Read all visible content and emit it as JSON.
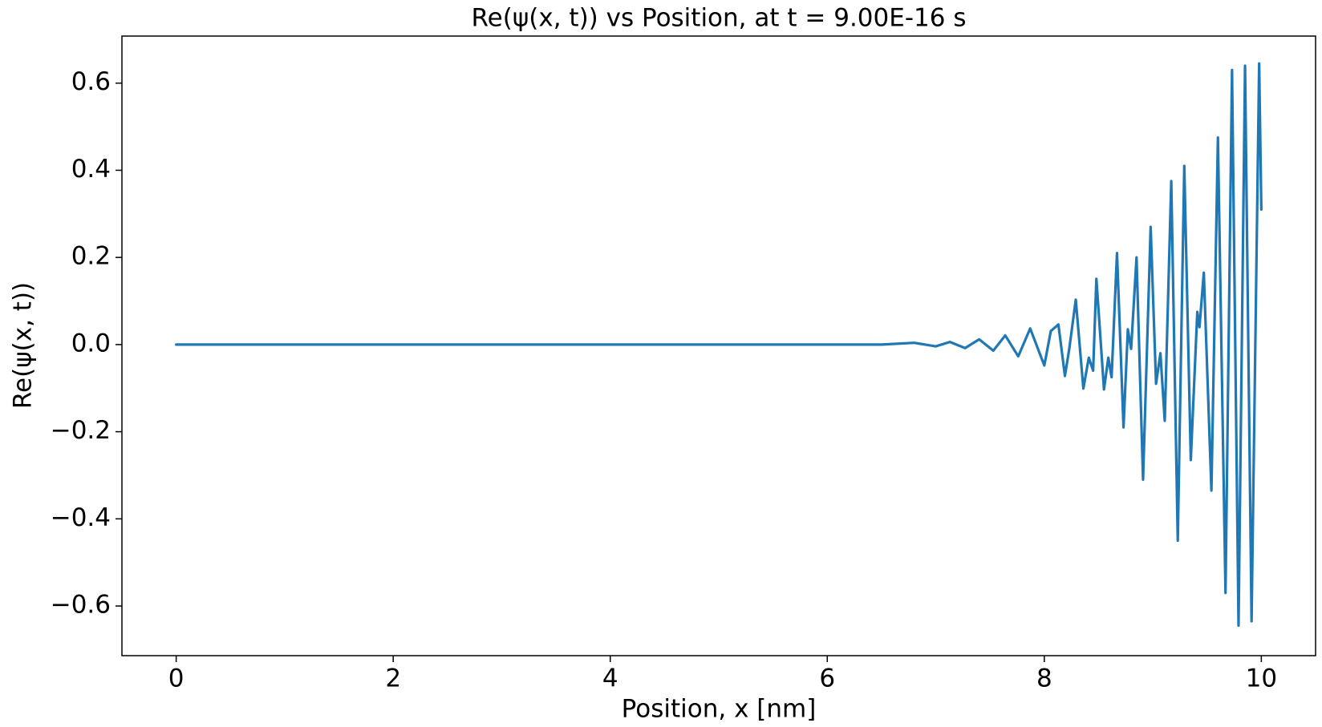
{
  "chart_data": {
    "type": "line",
    "title": "Re(ψ(x, t)) vs Position, at t = 9.00E-16 s",
    "x_label": "Position, x [nm]",
    "y_label": "Re(ψ(x, t))",
    "xlim": [
      -0.5,
      10.5
    ],
    "ylim": [
      -0.714,
      0.708
    ],
    "xticks": [
      0,
      2,
      4,
      6,
      8,
      10
    ],
    "yticks": [
      {
        "value": -0.6,
        "label": "−0.6"
      },
      {
        "value": -0.4,
        "label": "−0.4"
      },
      {
        "value": -0.2,
        "label": "−0.2"
      },
      {
        "value": 0,
        "label": "0.0"
      },
      0.2,
      0.4,
      0.6
    ],
    "grid": false,
    "series": [
      {
        "name": "Re(ψ(x, t))",
        "color": "#1f77b4",
        "x": [
          0,
          6.5,
          6.8,
          7.0,
          7.13,
          7.27,
          7.4,
          7.53,
          7.64,
          7.76,
          7.87,
          8.0,
          8.06,
          8.13,
          8.19,
          8.23,
          8.29,
          8.36,
          8.41,
          8.45,
          8.48,
          8.55,
          8.59,
          8.62,
          8.67,
          8.73,
          8.77,
          8.8,
          8.85,
          8.91,
          8.98,
          9.03,
          9.07,
          9.11,
          9.17,
          9.23,
          9.29,
          9.35,
          9.41,
          9.43,
          9.47,
          9.54,
          9.6,
          9.67,
          9.73,
          9.79,
          9.85,
          9.91,
          9.98,
          10.0
        ],
        "values": [
          0,
          0,
          0.004,
          -0.004,
          0.006,
          -0.008,
          0.012,
          -0.014,
          0.021,
          -0.027,
          0.037,
          -0.048,
          0.031,
          0.046,
          -0.072,
          -0.01,
          0.103,
          -0.101,
          -0.03,
          -0.06,
          0.151,
          -0.103,
          -0.03,
          -0.075,
          0.21,
          -0.19,
          0.035,
          -0.01,
          0.2,
          -0.31,
          0.27,
          -0.09,
          -0.02,
          -0.175,
          0.375,
          -0.45,
          0.41,
          -0.265,
          0.075,
          0.04,
          0.165,
          -0.335,
          0.475,
          -0.57,
          0.63,
          -0.645,
          0.64,
          -0.635,
          0.645,
          0.31
        ]
      }
    ]
  }
}
